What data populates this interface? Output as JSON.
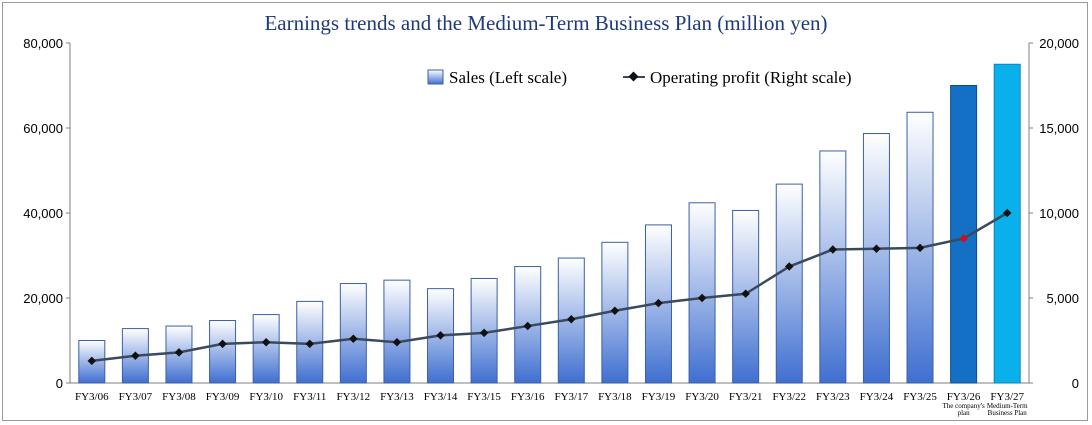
{
  "chart_data": {
    "type": "bar",
    "title": "Earnings trends and the Medium-Term Business Plan (million yen)",
    "categories": [
      "FY3/06",
      "FY3/07",
      "FY3/08",
      "FY3/09",
      "FY3/10",
      "FY3/11",
      "FY3/12",
      "FY3/13",
      "FY3/14",
      "FY3/15",
      "FY3/16",
      "FY3/17",
      "FY3/18",
      "FY3/19",
      "FY3/20",
      "FY3/21",
      "FY3/22",
      "FY3/23",
      "FY3/24",
      "FY3/25",
      "FY3/26",
      "FY3/27"
    ],
    "category_notes": [
      "",
      "",
      "",
      "",
      "",
      "",
      "",
      "",
      "",
      "",
      "",
      "",
      "",
      "",
      "",
      "",
      "",
      "",
      "",
      "",
      "The company's plan",
      "Medium-Term Business Plan"
    ],
    "series": [
      {
        "name": "Sales (Left scale)",
        "axis": "left",
        "type": "bar",
        "values": [
          10000,
          12800,
          13400,
          14700,
          16100,
          19200,
          23400,
          24200,
          22200,
          24600,
          27400,
          29400,
          33100,
          37200,
          42400,
          40600,
          46800,
          54600,
          58700,
          63700,
          70000,
          75000
        ]
      },
      {
        "name": "Operating profit (Right scale)",
        "axis": "right",
        "type": "line",
        "values": [
          1300,
          1600,
          1800,
          2300,
          2400,
          2300,
          2600,
          2400,
          2800,
          2950,
          3350,
          3750,
          4250,
          4700,
          5000,
          5250,
          6850,
          7850,
          7900,
          7950,
          8500,
          10000
        ]
      }
    ],
    "ylim_left": [
      0,
      80000
    ],
    "ylim_right": [
      0,
      20000
    ],
    "yticks_left": [
      "0",
      "20,000",
      "40,000",
      "60,000",
      "80,000"
    ],
    "yticks_right": [
      "0",
      "5,000",
      "10,000",
      "15,000",
      "20,000"
    ],
    "colors": {
      "plan_bar": "#1470c4",
      "mtp_bar": "#0ab0ec",
      "bar_top": "#ffffff",
      "bar_bottom": "#3f6fd0",
      "bar_border": "#3c5fa8",
      "line": "#394a5e",
      "marker": "#111111",
      "plan_marker": "#d01010"
    },
    "legend_position": "top-right",
    "grid": false
  }
}
